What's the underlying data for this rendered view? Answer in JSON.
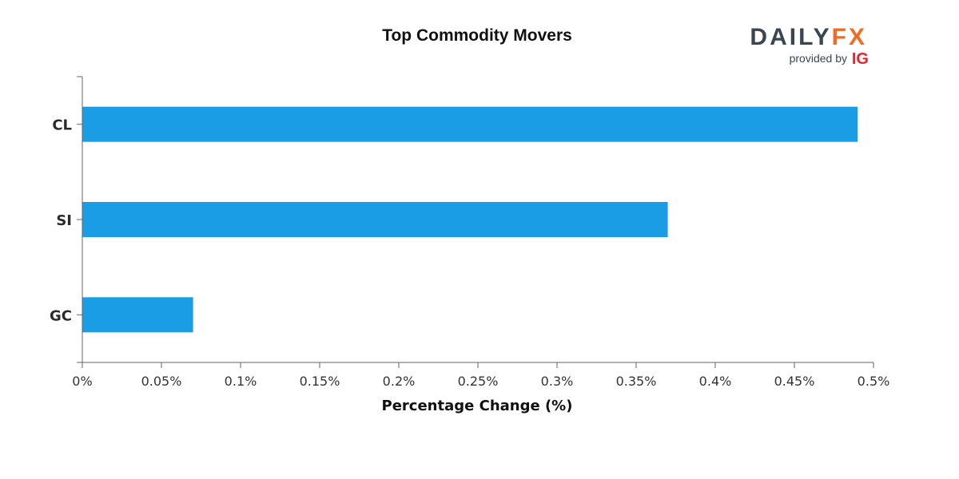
{
  "branding": {
    "logo_main": "DAILY",
    "logo_accent": "FX",
    "provided_by": "provided by",
    "provider": "IG",
    "colors": {
      "main": "#3b4653",
      "accent": "#f26b21",
      "provider": "#e8232b"
    }
  },
  "chart_data": {
    "type": "bar",
    "orientation": "horizontal",
    "title": "Top Commodity Movers",
    "xlabel": "Percentage Change (%)",
    "ylabel": "",
    "categories": [
      "CL",
      "SI",
      "GC"
    ],
    "values": [
      0.49,
      0.37,
      0.07
    ],
    "xlim": [
      0,
      0.5
    ],
    "x_ticks": [
      0,
      0.05,
      0.1,
      0.15,
      0.2,
      0.25,
      0.3,
      0.35,
      0.4,
      0.45,
      0.5
    ],
    "x_tick_labels": [
      "0%",
      "0.05%",
      "0.1%",
      "0.15%",
      "0.2%",
      "0.25%",
      "0.3%",
      "0.35%",
      "0.4%",
      "0.45%",
      "0.5%"
    ],
    "grid": false,
    "legend": "none",
    "bar_color": "#1a9de4",
    "axis_color": "#666666"
  }
}
